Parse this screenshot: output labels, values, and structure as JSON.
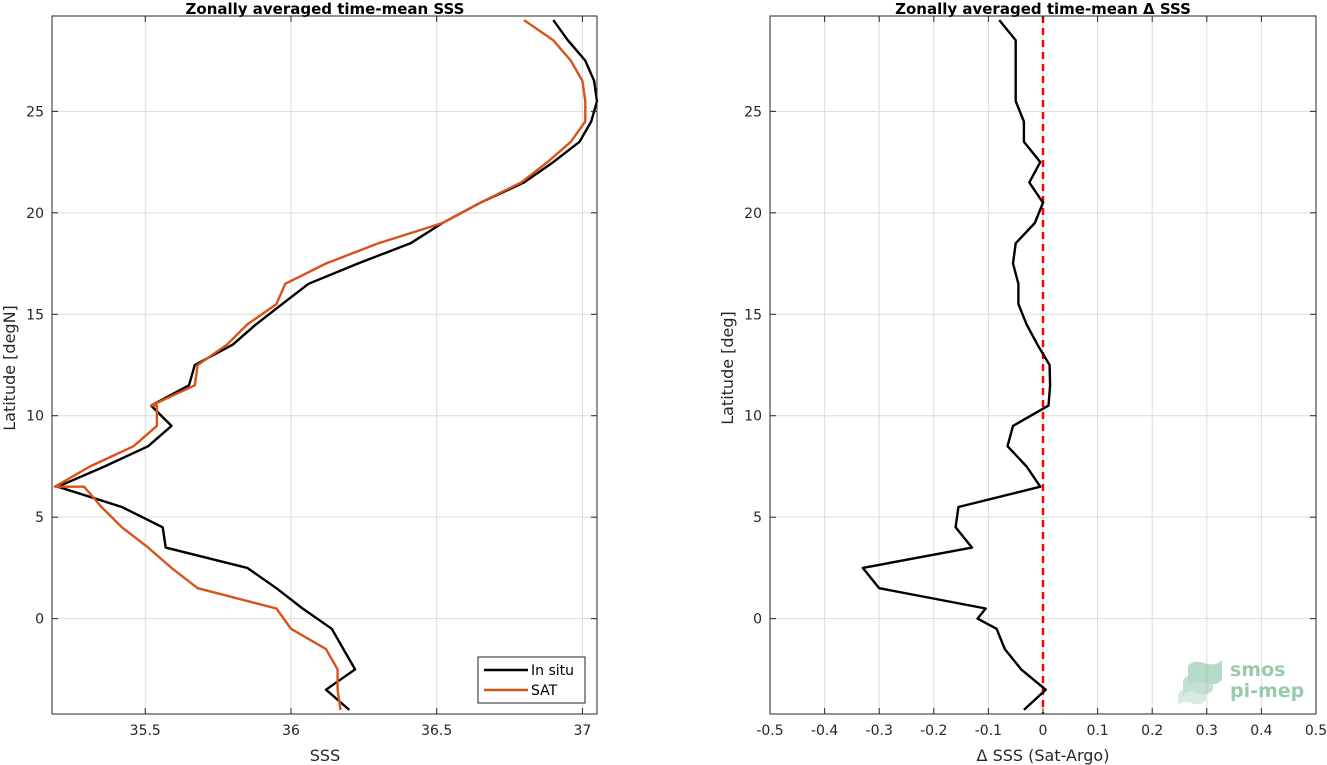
{
  "chart_data": [
    {
      "type": "line",
      "title": "Zonally averaged time-mean SSS",
      "xlabel": "SSS",
      "ylabel": "Latitude [degN]",
      "xlim": [
        35.18,
        37.05
      ],
      "ylim": [
        -4.7,
        29.7
      ],
      "xticks": [
        35.5,
        36,
        36.5,
        37
      ],
      "xtick_labels": [
        "35.5",
        "36",
        "36.5",
        "37"
      ],
      "yticks": [
        0,
        5,
        10,
        15,
        20,
        25
      ],
      "ytick_labels": [
        "0",
        "5",
        "10",
        "15",
        "20",
        "25"
      ],
      "grid": true,
      "legend_position": "bottom-right",
      "series": [
        {
          "name": "In situ",
          "color": "#000000",
          "points": [
            [
              36.2,
              -4.5
            ],
            [
              36.12,
              -3.5
            ],
            [
              36.22,
              -2.5
            ],
            [
              36.18,
              -1.5
            ],
            [
              36.14,
              -0.5
            ],
            [
              36.04,
              0.5
            ],
            [
              35.95,
              1.5
            ],
            [
              35.85,
              2.5
            ],
            [
              35.57,
              3.5
            ],
            [
              35.56,
              4.5
            ],
            [
              35.42,
              5.5
            ],
            [
              35.2,
              6.5
            ],
            [
              35.36,
              7.5
            ],
            [
              35.51,
              8.5
            ],
            [
              35.59,
              9.5
            ],
            [
              35.52,
              10.5
            ],
            [
              35.65,
              11.5
            ],
            [
              35.67,
              12.5
            ],
            [
              35.8,
              13.5
            ],
            [
              35.88,
              14.5
            ],
            [
              35.97,
              15.5
            ],
            [
              36.06,
              16.5
            ],
            [
              36.23,
              17.5
            ],
            [
              36.41,
              18.5
            ],
            [
              36.52,
              19.5
            ],
            [
              36.65,
              20.5
            ],
            [
              36.8,
              21.5
            ],
            [
              36.9,
              22.5
            ],
            [
              36.99,
              23.5
            ],
            [
              37.03,
              24.5
            ],
            [
              37.05,
              25.5
            ],
            [
              37.04,
              26.5
            ],
            [
              37.01,
              27.5
            ],
            [
              36.95,
              28.5
            ],
            [
              36.9,
              29.5
            ]
          ]
        },
        {
          "name": "SAT",
          "color": "#d95319",
          "points": [
            [
              36.17,
              -4.5
            ],
            [
              36.16,
              -3.5
            ],
            [
              36.16,
              -2.5
            ],
            [
              36.12,
              -1.5
            ],
            [
              36.0,
              -0.5
            ],
            [
              35.95,
              0.5
            ],
            [
              35.68,
              1.5
            ],
            [
              35.59,
              2.5
            ],
            [
              35.51,
              3.5
            ],
            [
              35.42,
              4.5
            ],
            [
              35.35,
              5.5
            ],
            [
              35.29,
              6.5
            ],
            [
              35.19,
              6.5
            ],
            [
              35.31,
              7.5
            ],
            [
              35.46,
              8.5
            ],
            [
              35.54,
              9.5
            ],
            [
              35.54,
              10.5
            ],
            [
              35.52,
              10.5
            ],
            [
              35.67,
              11.5
            ],
            [
              35.68,
              12.5
            ],
            [
              35.78,
              13.5
            ],
            [
              35.85,
              14.5
            ],
            [
              35.95,
              15.5
            ],
            [
              35.98,
              16.5
            ],
            [
              36.12,
              17.5
            ],
            [
              36.3,
              18.5
            ],
            [
              36.52,
              19.5
            ],
            [
              36.65,
              20.5
            ],
            [
              36.79,
              21.5
            ],
            [
              36.88,
              22.5
            ],
            [
              36.96,
              23.5
            ],
            [
              37.01,
              24.5
            ],
            [
              37.01,
              25.5
            ],
            [
              37.0,
              26.5
            ],
            [
              36.96,
              27.5
            ],
            [
              36.9,
              28.5
            ],
            [
              36.8,
              29.5
            ]
          ]
        }
      ]
    },
    {
      "type": "line",
      "title": "Zonally averaged time-mean Δ SSS",
      "xlabel": "Δ SSS (Sat-Argo)",
      "ylabel": "Latitude [deg]",
      "xlim": [
        -0.5,
        0.5
      ],
      "ylim": [
        -4.7,
        29.7
      ],
      "xticks": [
        -0.5,
        -0.4,
        -0.3,
        -0.2,
        -0.1,
        0,
        0.1,
        0.2,
        0.3,
        0.4,
        0.5
      ],
      "xtick_labels": [
        "-0.5",
        "-0.4",
        "-0.3",
        "-0.2",
        "-0.1",
        "0",
        "0.1",
        "0.2",
        "0.3",
        "0.4",
        "0.5"
      ],
      "yticks": [
        0,
        5,
        10,
        15,
        20,
        25
      ],
      "ytick_labels": [
        "0",
        "5",
        "10",
        "15",
        "20",
        "25"
      ],
      "grid": true,
      "reference_line": {
        "x": 0,
        "color": "#ff0000",
        "style": "dashed"
      },
      "series": [
        {
          "color": "#000000",
          "points": [
            [
              -0.035,
              -4.5
            ],
            [
              0.005,
              -3.5
            ],
            [
              -0.04,
              -2.5
            ],
            [
              -0.07,
              -1.5
            ],
            [
              -0.085,
              -0.5
            ],
            [
              -0.12,
              0.0
            ],
            [
              -0.105,
              0.5
            ],
            [
              -0.3,
              1.5
            ],
            [
              -0.33,
              2.5
            ],
            [
              -0.13,
              3.5
            ],
            [
              -0.16,
              4.5
            ],
            [
              -0.155,
              5.5
            ],
            [
              -0.005,
              6.5
            ],
            [
              -0.03,
              7.5
            ],
            [
              -0.065,
              8.5
            ],
            [
              -0.055,
              9.5
            ],
            [
              0.01,
              10.5
            ],
            [
              0.013,
              11.5
            ],
            [
              0.012,
              12.5
            ],
            [
              -0.01,
              13.5
            ],
            [
              -0.03,
              14.5
            ],
            [
              -0.045,
              15.5
            ],
            [
              -0.045,
              16.5
            ],
            [
              -0.055,
              17.5
            ],
            [
              -0.05,
              18.5
            ],
            [
              -0.015,
              19.5
            ],
            [
              0.0,
              20.5
            ],
            [
              -0.025,
              21.5
            ],
            [
              -0.005,
              22.5
            ],
            [
              -0.035,
              23.5
            ],
            [
              -0.035,
              24.5
            ],
            [
              -0.05,
              25.5
            ],
            [
              -0.05,
              26.5
            ],
            [
              -0.05,
              27.5
            ],
            [
              -0.05,
              28.5
            ],
            [
              -0.08,
              29.5
            ]
          ]
        }
      ]
    }
  ],
  "legend": {
    "entries": [
      {
        "label": "In situ",
        "color": "#000000"
      },
      {
        "label": "SAT",
        "color": "#d95319"
      }
    ]
  },
  "logo": {
    "line1": "smos",
    "line2": "pi-mep",
    "color": "#7dbf9a"
  }
}
